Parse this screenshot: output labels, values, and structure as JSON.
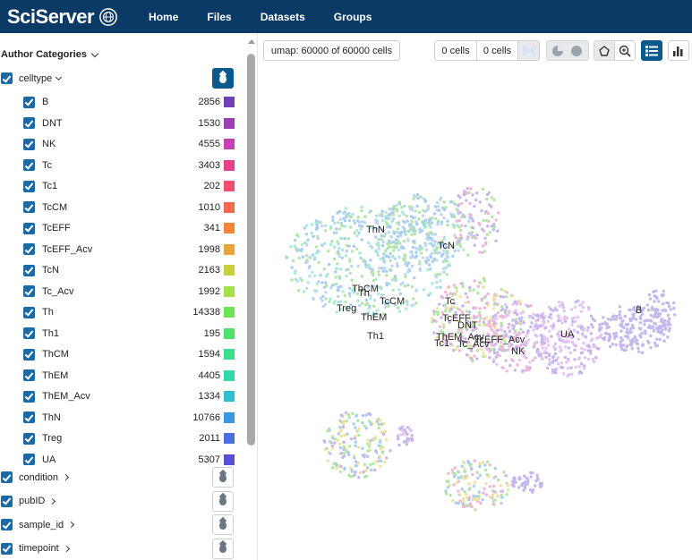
{
  "app": {
    "brand": "SciServer"
  },
  "nav": [
    "Home",
    "Files",
    "Datasets",
    "Groups"
  ],
  "sidebar": {
    "section_title": "Author Categories",
    "celltype_label": "celltype",
    "items": [
      {
        "name": "B",
        "count": "2856",
        "color": "#6f3fb5"
      },
      {
        "name": "DNT",
        "count": "1530",
        "color": "#9b3fb5"
      },
      {
        "name": "NK",
        "count": "4555",
        "color": "#c63fb5"
      },
      {
        "name": "Tc",
        "count": "3403",
        "color": "#e8408f"
      },
      {
        "name": "Tc1",
        "count": "202",
        "color": "#f0506b"
      },
      {
        "name": "TcCM",
        "count": "1010",
        "color": "#f2694c"
      },
      {
        "name": "TcEFF",
        "count": "341",
        "color": "#f2853a"
      },
      {
        "name": "TcEFF_Acv",
        "count": "1998",
        "color": "#e9a43a"
      },
      {
        "name": "TcN",
        "count": "2163",
        "color": "#c8cf3a"
      },
      {
        "name": "Tc_Acv",
        "count": "1992",
        "color": "#a4e04a"
      },
      {
        "name": "Th",
        "count": "14338",
        "color": "#6fe356"
      },
      {
        "name": "Th1",
        "count": "195",
        "color": "#4fe26d"
      },
      {
        "name": "ThCM",
        "count": "1594",
        "color": "#3ce08c"
      },
      {
        "name": "ThEM",
        "count": "4405",
        "color": "#2fd9a9"
      },
      {
        "name": "ThEM_Acv",
        "count": "1334",
        "color": "#2fbfd0"
      },
      {
        "name": "ThN",
        "count": "10766",
        "color": "#3a96e0"
      },
      {
        "name": "Treg",
        "count": "2011",
        "color": "#4a6de0"
      },
      {
        "name": "UA",
        "count": "5307",
        "color": "#5a4fd8"
      }
    ],
    "other_categories": [
      "condition",
      "pubID",
      "sample_id",
      "timepoint"
    ]
  },
  "toolbar": {
    "umap_label": "umap: 60000 of 60000 cells",
    "cells_a": "0 cells",
    "cells_b": "0 cells"
  },
  "plot": {
    "cluster_labels": [
      "ThN",
      "TcN",
      "ThCM",
      "Th",
      "TcCM",
      "Treg",
      "ThEM",
      "Th1",
      "Tc",
      "TcEFF",
      "DNT",
      "ThEM_Acv",
      "Tc1",
      "TcEFF_Acv",
      "Tc_Acv",
      "NK",
      "UA",
      "B"
    ]
  }
}
